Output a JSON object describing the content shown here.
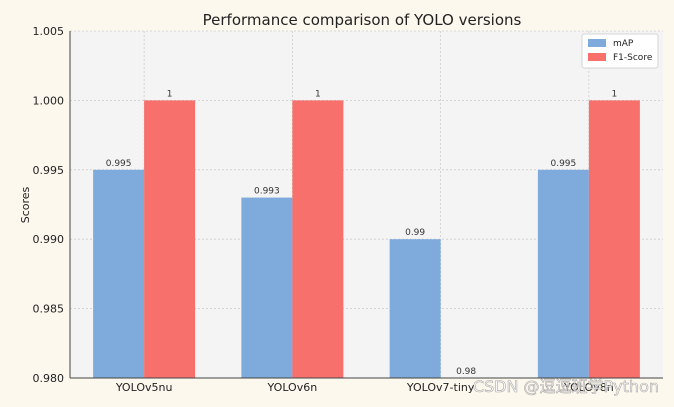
{
  "chart_data": {
    "type": "bar",
    "title": "Performance comparison of YOLO versions",
    "ylabel": "Scores",
    "xlabel": "",
    "categories": [
      "YOLOv5nu",
      "YOLOv6n",
      "YOLOv7-tiny",
      "YOLOv8n"
    ],
    "series": [
      {
        "name": "mAP",
        "values": [
          0.995,
          0.993,
          0.99,
          0.995
        ],
        "labels": [
          "0.995",
          "0.993",
          "0.99",
          "0.995"
        ],
        "color": "#7eaadc"
      },
      {
        "name": "F1-Score",
        "values": [
          1.0,
          1.0,
          0.98,
          1.0
        ],
        "labels": [
          "1",
          "1",
          "0.98",
          "1"
        ],
        "color": "#f7706c"
      }
    ],
    "ylim": [
      0.98,
      1.005
    ],
    "yticks": [
      "0.980",
      "0.985",
      "0.990",
      "0.995",
      "1.000",
      "1.005"
    ],
    "grid": true,
    "legend_position": "top-right"
  },
  "watermark": "CSDN @逗逗班学Python",
  "colors": {
    "background": "#fdf8ee",
    "plot_background": "#f4f4f4",
    "grid": "#cccccc"
  }
}
